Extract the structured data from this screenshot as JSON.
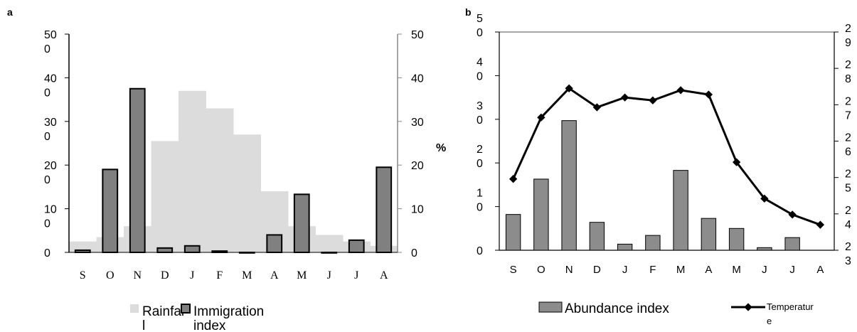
{
  "chart_data": [
    {
      "panel_label": "a",
      "type": "bar",
      "categories": [
        "S",
        "O",
        "N",
        "D",
        "J",
        "F",
        "M",
        "A",
        "M",
        "J",
        "J",
        "A"
      ],
      "ylim_left": [
        0,
        500
      ],
      "ylim_right": [
        0,
        50
      ],
      "left_ticks": [
        [
          "0"
        ],
        [
          "10",
          "0"
        ],
        [
          "20",
          "0"
        ],
        [
          "30",
          "0"
        ],
        [
          "40",
          "0"
        ],
        [
          "50",
          "0"
        ]
      ],
      "right_ticks": [
        "0",
        "10",
        "20",
        "30",
        "40",
        "50"
      ],
      "right_axis_label": "%",
      "series": [
        {
          "name": "Rainfall",
          "legend_lines": [
            "Rainfal",
            "l"
          ],
          "color": "#dcdcdc",
          "axis": "left",
          "values": [
            25,
            35,
            60,
            255,
            370,
            330,
            270,
            140,
            60,
            40,
            25,
            15
          ]
        },
        {
          "name": "Immigration index",
          "legend_lines": [
            "Immigration",
            "index"
          ],
          "color": "#808080",
          "axis": "right",
          "values": [
            0.5,
            19,
            37.5,
            1,
            1.5,
            0.3,
            0,
            4,
            13.3,
            0,
            2.8,
            19.5
          ]
        }
      ]
    },
    {
      "panel_label": "b",
      "type": "bar+line",
      "categories": [
        "S",
        "O",
        "N",
        "D",
        "J",
        "F",
        "M",
        "A",
        "M",
        "J",
        "J",
        "A"
      ],
      "ylim_left": [
        0,
        50
      ],
      "ylim_right": [
        23,
        29
      ],
      "left_ticks": [
        [
          "0"
        ],
        [
          "1",
          "0"
        ],
        [
          "2",
          "0"
        ],
        [
          "3",
          "0"
        ],
        [
          "4",
          "0"
        ],
        [
          "5",
          "0"
        ]
      ],
      "right_ticks": [
        [
          "2",
          "3"
        ],
        [
          "2",
          "4"
        ],
        [
          "2",
          "5"
        ],
        [
          "2",
          "6"
        ],
        [
          "2",
          "7"
        ],
        [
          "2",
          "8"
        ],
        [
          "2",
          "9"
        ]
      ],
      "series": [
        {
          "name": "Abundance index",
          "legend_lines": [
            "Abundance index"
          ],
          "color": "#8c8c8c",
          "axis": "left",
          "values": [
            8.2,
            16.3,
            29.7,
            6.4,
            1.4,
            3.4,
            18.3,
            7.3,
            5.0,
            0.6,
            2.9,
            0
          ]
        },
        {
          "name": "Temperature",
          "legend_lines": [
            "Temperatur",
            "e"
          ],
          "color": "#000000",
          "axis": "right",
          "values": [
            24.96,
            26.65,
            27.45,
            26.93,
            27.2,
            27.12,
            27.4,
            27.28,
            25.42,
            24.42,
            23.98,
            23.7
          ]
        }
      ]
    }
  ]
}
